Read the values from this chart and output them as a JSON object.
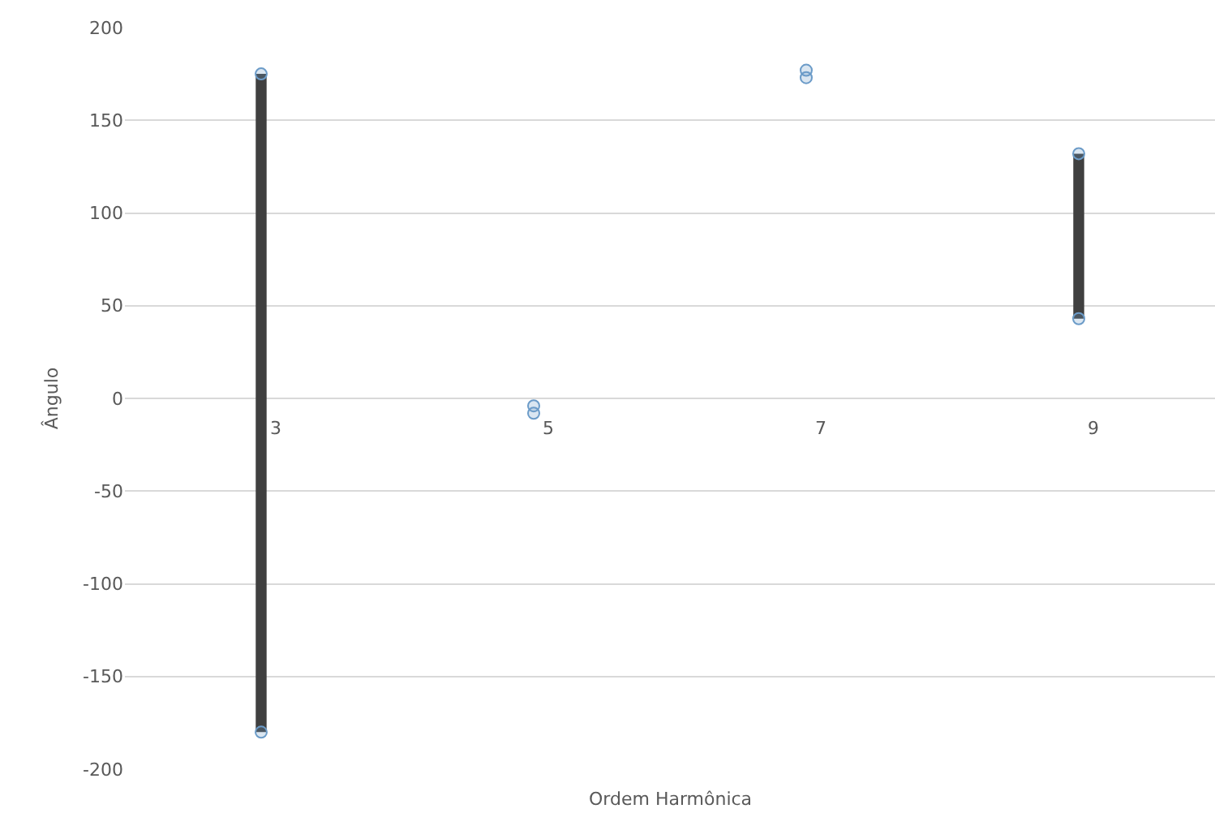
{
  "chart_data": {
    "type": "scatter",
    "xlabel": "Ordem Harmônica",
    "ylabel": "Ângulo",
    "categories": [
      "3",
      "5",
      "7",
      "9"
    ],
    "series": [
      {
        "type": "bar",
        "color": "#404040",
        "base": [
          -180,
          null,
          null,
          43
        ],
        "values": [
          355,
          null,
          null,
          89
        ]
      },
      {
        "color": "#6b9bc8",
        "values": [
          175,
          -4,
          177,
          132
        ]
      },
      {
        "color": "#6b9bc8",
        "values": [
          -180,
          -8,
          173,
          43
        ]
      }
    ],
    "ylim": [
      -200,
      200
    ],
    "yticks": [
      -200,
      -150,
      -100,
      -50,
      0,
      50,
      100,
      150,
      200
    ],
    "grid": "y",
    "marker": "circle"
  }
}
